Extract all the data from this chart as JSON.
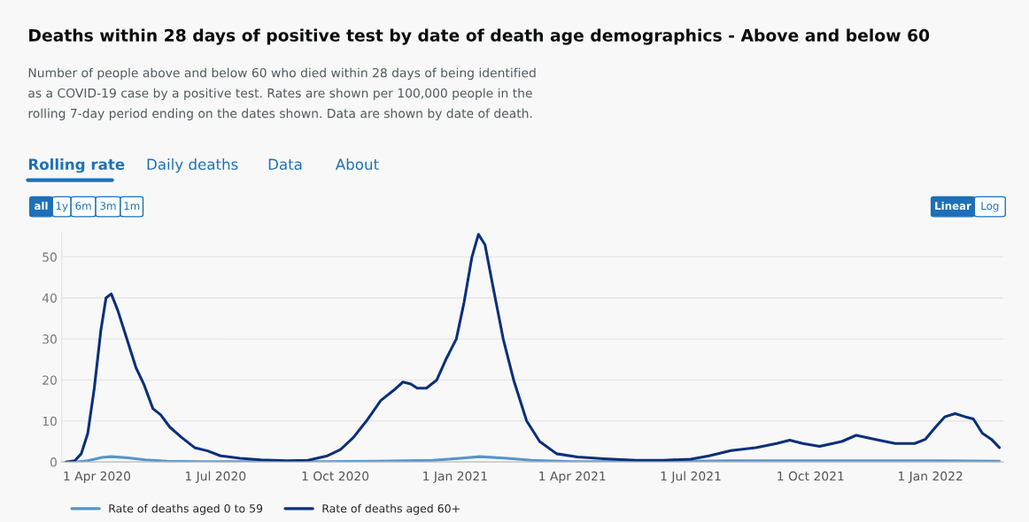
{
  "chart_data": {
    "type": "line",
    "title": "Deaths within 28 days of positive test by date of death age demographics - Above and below 60",
    "subtitle": "Number of people above and below 60 who died within 28 days of being identified\nas a COVID-19 case by a positive test. Rates are shown per 100,000 people in the\nrolling 7-day period ending on the dates shown. Data are shown by date of death.",
    "annotations": [
      "Rolling rate",
      "Daily deaths",
      "Data",
      "About",
      "all",
      "1y",
      "6m",
      "3m",
      "1m",
      "Linear",
      "Log"
    ],
    "series": [
      {
        "name": "Rate of deaths aged 0 to 59",
        "color": "#5694ca",
        "x": [
          "2020-03-15",
          "2020-03-25",
          "2020-04-05",
          "2020-04-12",
          "2020-04-25",
          "2020-05-08",
          "2020-05-25",
          "2020-06-20",
          "2020-09-20",
          "2020-11-01",
          "2020-12-15",
          "2021-01-05",
          "2021-01-20",
          "2021-02-10",
          "2021-03-01",
          "2021-04-01",
          "2021-06-15",
          "2021-08-01",
          "2021-10-01",
          "2022-01-10",
          "2022-02-23"
        ],
        "values": [
          0,
          0.3,
          1.1,
          1.3,
          1.0,
          0.5,
          0.2,
          0.1,
          0.1,
          0.2,
          0.4,
          0.9,
          1.3,
          0.9,
          0.4,
          0.1,
          0.1,
          0.3,
          0.3,
          0.3,
          0.2
        ]
      },
      {
        "name": "Rate of deaths aged 60+",
        "color": "#0b2f7a",
        "x": [
          "2020-03-08",
          "2020-03-15",
          "2020-03-20",
          "2020-03-25",
          "2020-03-30",
          "2020-04-04",
          "2020-04-08",
          "2020-04-12",
          "2020-04-17",
          "2020-04-24",
          "2020-05-01",
          "2020-05-07",
          "2020-05-14",
          "2020-05-20",
          "2020-05-27",
          "2020-06-05",
          "2020-06-15",
          "2020-06-25",
          "2020-07-05",
          "2020-07-20",
          "2020-08-05",
          "2020-08-25",
          "2020-09-10",
          "2020-09-25",
          "2020-10-05",
          "2020-10-15",
          "2020-10-25",
          "2020-11-05",
          "2020-11-15",
          "2020-11-22",
          "2020-11-28",
          "2020-12-03",
          "2020-12-10",
          "2020-12-18",
          "2020-12-25",
          "2021-01-02",
          "2021-01-08",
          "2021-01-14",
          "2021-01-19",
          "2021-01-24",
          "2021-01-30",
          "2021-02-07",
          "2021-02-15",
          "2021-02-25",
          "2021-03-07",
          "2021-03-20",
          "2021-04-05",
          "2021-04-25",
          "2021-05-20",
          "2021-06-10",
          "2021-07-01",
          "2021-07-15",
          "2021-08-01",
          "2021-08-20",
          "2021-09-05",
          "2021-09-15",
          "2021-09-25",
          "2021-10-08",
          "2021-10-25",
          "2021-11-05",
          "2021-11-20",
          "2021-12-05",
          "2021-12-20",
          "2021-12-28",
          "2022-01-05",
          "2022-01-12",
          "2022-01-20",
          "2022-01-28",
          "2022-02-03",
          "2022-02-10",
          "2022-02-17",
          "2022-02-23"
        ],
        "values": [
          0,
          0.3,
          2,
          7,
          18,
          32,
          40,
          41,
          37,
          30,
          23,
          19,
          13,
          11.5,
          8.5,
          6,
          3.5,
          2.7,
          1.5,
          0.9,
          0.5,
          0.3,
          0.4,
          1.5,
          3,
          6,
          10,
          15,
          17.5,
          19.5,
          19,
          18,
          18,
          20,
          25,
          30,
          39,
          50,
          55.5,
          53,
          43,
          30,
          20,
          10,
          5,
          2,
          1.2,
          0.8,
          0.4,
          0.4,
          0.7,
          1.5,
          2.8,
          3.5,
          4.5,
          5.3,
          4.5,
          3.8,
          5,
          6.5,
          5.5,
          4.5,
          4.5,
          5.5,
          8.5,
          11,
          11.8,
          11,
          10.5,
          7,
          5.5,
          3.5
        ]
      }
    ],
    "xlim": [
      "2020-03-05",
      "2022-02-26"
    ],
    "xticks": [
      {
        "value": "2020-04-01",
        "label": "1 Apr 2020"
      },
      {
        "value": "2020-07-01",
        "label": "1 Jul 2020"
      },
      {
        "value": "2020-10-01",
        "label": "1 Oct 2020"
      },
      {
        "value": "2021-01-01",
        "label": "1 Jan 2021"
      },
      {
        "value": "2021-04-01",
        "label": "1 Apr 2021"
      },
      {
        "value": "2021-07-01",
        "label": "1 Jul 2021"
      },
      {
        "value": "2021-10-01",
        "label": "1 Oct 2021"
      },
      {
        "value": "2022-01-01",
        "label": "1 Jan 2022"
      }
    ],
    "ylim": [
      0,
      56
    ],
    "yticks": [
      0,
      10,
      20,
      30,
      40,
      50
    ],
    "grid": "y",
    "legend": "bottom left",
    "marker": "none",
    "line_style": "solid"
  }
}
